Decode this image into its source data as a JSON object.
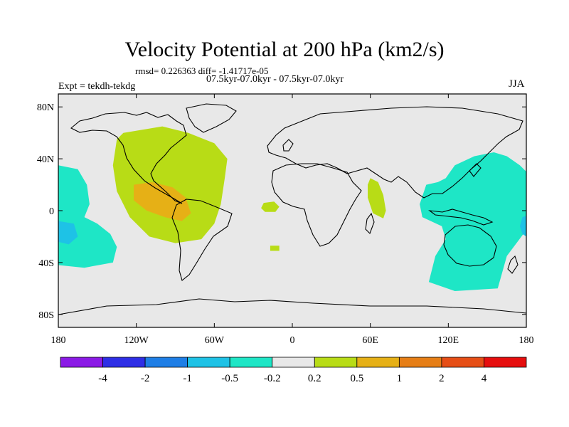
{
  "header": {
    "title": "Velocity Potential at 200 hPa (km2/s)",
    "stats": "rmsd= 0.226363 diff= -1.41717e-05",
    "subtitle": "07.5kyr-07.0kyr - 07.5kyr-07.0kyr",
    "experiment": "Expt = tekdh-tekdg",
    "season": "JJA"
  },
  "chart_data": {
    "type": "heatmap",
    "title": "Velocity Potential at 200 hPa (km2/s)",
    "projection": "cylindrical-equidistant",
    "xlim": [
      -180,
      180
    ],
    "ylim": [
      -90,
      90
    ],
    "x_ticks": [
      {
        "value": -180,
        "label": "180"
      },
      {
        "value": -120,
        "label": "120W"
      },
      {
        "value": -60,
        "label": "60W"
      },
      {
        "value": 0,
        "label": "0"
      },
      {
        "value": 60,
        "label": "60E"
      },
      {
        "value": 120,
        "label": "120E"
      },
      {
        "value": 180,
        "label": "180"
      }
    ],
    "y_ticks": [
      {
        "value": 80,
        "label": "80N"
      },
      {
        "value": 40,
        "label": "40N"
      },
      {
        "value": 0,
        "label": "0"
      },
      {
        "value": -40,
        "label": "40S"
      },
      {
        "value": -80,
        "label": "80S"
      }
    ],
    "colorbar": {
      "colors": [
        "#8b1ae6",
        "#2e2ee6",
        "#1e7ee6",
        "#1ec2e6",
        "#1ee6c6",
        "#e8e8e8",
        "#b8dc16",
        "#e6b016",
        "#e67e16",
        "#e64e16",
        "#e60e0e"
      ],
      "labels": [
        "-4",
        "-2",
        "-1",
        "-0.5",
        "-0.2",
        "0.2",
        "0.5",
        "1",
        "2",
        "4"
      ]
    },
    "contour_regions": [
      {
        "name": "western-pacific-warm",
        "level_index": 6,
        "points": [
          [
            -130,
            60
          ],
          [
            -100,
            65
          ],
          [
            -80,
            60
          ],
          [
            -60,
            52
          ],
          [
            -50,
            40
          ],
          [
            -52,
            25
          ],
          [
            -55,
            5
          ],
          [
            -60,
            -10
          ],
          [
            -70,
            -22
          ],
          [
            -90,
            -25
          ],
          [
            -110,
            -20
          ],
          [
            -125,
            -5
          ],
          [
            -135,
            15
          ],
          [
            -138,
            35
          ],
          [
            -135,
            55
          ]
        ]
      },
      {
        "name": "mexico-max",
        "level_index": 7,
        "points": [
          [
            -122,
            20
          ],
          [
            -108,
            22
          ],
          [
            -92,
            18
          ],
          [
            -82,
            10
          ],
          [
            -78,
            -2
          ],
          [
            -85,
            -8
          ],
          [
            -98,
            -5
          ],
          [
            -112,
            0
          ],
          [
            -122,
            8
          ]
        ]
      },
      {
        "name": "east-africa-warm",
        "level_index": 6,
        "points": [
          [
            60,
            25
          ],
          [
            66,
            22
          ],
          [
            70,
            12
          ],
          [
            72,
            0
          ],
          [
            70,
            -6
          ],
          [
            62,
            -2
          ],
          [
            58,
            10
          ],
          [
            58,
            20
          ]
        ]
      },
      {
        "name": "atlantic-warm-1",
        "level_index": 6,
        "points": [
          [
            -22,
            6
          ],
          [
            -14,
            7
          ],
          [
            -10,
            3
          ],
          [
            -13,
            -1
          ],
          [
            -21,
            -1
          ],
          [
            -24,
            2
          ]
        ]
      },
      {
        "name": "atlantic-warm-2",
        "level_index": 6,
        "points": [
          [
            -17,
            -27
          ],
          [
            -10,
            -27
          ],
          [
            -10,
            -31
          ],
          [
            -17,
            -31
          ]
        ]
      },
      {
        "name": "east-pacific-cool",
        "level_index": 4,
        "points": [
          [
            -180,
            35
          ],
          [
            -165,
            32
          ],
          [
            -158,
            20
          ],
          [
            -156,
            5
          ],
          [
            -160,
            -5
          ],
          [
            -150,
            -10
          ],
          [
            -140,
            -18
          ],
          [
            -135,
            -28
          ],
          [
            -138,
            -40
          ],
          [
            -160,
            -44
          ],
          [
            -180,
            -42
          ]
        ]
      },
      {
        "name": "east-pacific-core",
        "level_index": 3,
        "points": [
          [
            -180,
            -8
          ],
          [
            -168,
            -10
          ],
          [
            -165,
            -20
          ],
          [
            -172,
            -26
          ],
          [
            -180,
            -24
          ]
        ]
      },
      {
        "name": "indo-pacific-cool",
        "level_index": 4,
        "points": [
          [
            103,
            20
          ],
          [
            112,
            22
          ],
          [
            118,
            25
          ],
          [
            125,
            35
          ],
          [
            140,
            42
          ],
          [
            155,
            45
          ],
          [
            165,
            42
          ],
          [
            175,
            35
          ],
          [
            180,
            30
          ],
          [
            180,
            -15
          ],
          [
            165,
            -35
          ],
          [
            158,
            -60
          ],
          [
            125,
            -62
          ],
          [
            105,
            -55
          ],
          [
            110,
            -35
          ],
          [
            118,
            -22
          ],
          [
            115,
            -12
          ],
          [
            100,
            -5
          ],
          [
            98,
            5
          ]
        ]
      },
      {
        "name": "indo-pacific-core",
        "level_index": 3,
        "points": [
          [
            177,
            -5
          ],
          [
            180,
            -4
          ],
          [
            180,
            -20
          ],
          [
            177,
            -18
          ],
          [
            175,
            -12
          ]
        ]
      }
    ]
  }
}
